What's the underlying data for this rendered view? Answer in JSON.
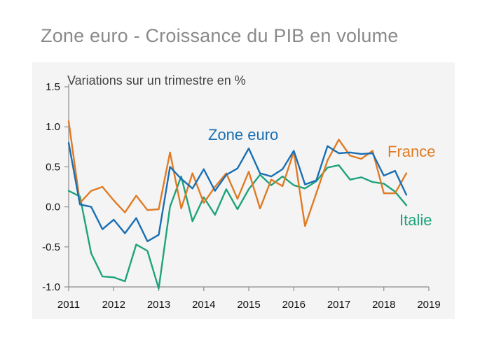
{
  "title": "Zone euro - Croissance du PIB en volume",
  "chart_data": {
    "type": "line",
    "title": "Zone euro - Croissance du PIB en volume",
    "ylabel": "Variations sur un trimestre en %",
    "xlabel": "",
    "ylim": [
      -1.0,
      1.5
    ],
    "xlim": [
      2011,
      2019
    ],
    "yticks": [
      1.5,
      1.0,
      0.5,
      0.0,
      -0.5,
      -1.0
    ],
    "ytick_labels": [
      "1.5",
      "1.0",
      "0.5",
      "0.0",
      "-0.5",
      "-1.0"
    ],
    "xticks": [
      2011,
      2012,
      2013,
      2014,
      2015,
      2016,
      2017,
      2018,
      2019
    ],
    "xtick_labels": [
      "2011",
      "2012",
      "2013",
      "2014",
      "2015",
      "2016",
      "2017",
      "2018",
      "2019"
    ],
    "x": [
      2011.0,
      2011.25,
      2011.5,
      2011.75,
      2012.0,
      2012.25,
      2012.5,
      2012.75,
      2013.0,
      2013.25,
      2013.5,
      2013.75,
      2014.0,
      2014.25,
      2014.5,
      2014.75,
      2015.0,
      2015.25,
      2015.5,
      2015.75,
      2016.0,
      2016.25,
      2016.5,
      2016.75,
      2017.0,
      2017.25,
      2017.5,
      2017.75,
      2018.0,
      2018.25,
      2018.5
    ],
    "series": [
      {
        "name": "Zone euro",
        "color": "#1a6fb3",
        "values": [
          0.8,
          0.03,
          0.0,
          -0.28,
          -0.16,
          -0.33,
          -0.14,
          -0.43,
          -0.35,
          0.5,
          0.35,
          0.23,
          0.47,
          0.2,
          0.4,
          0.48,
          0.73,
          0.42,
          0.38,
          0.47,
          0.7,
          0.28,
          0.33,
          0.76,
          0.67,
          0.68,
          0.66,
          0.67,
          0.39,
          0.45,
          0.15
        ]
      },
      {
        "name": "France",
        "color": "#e07b24",
        "values": [
          1.07,
          0.05,
          0.2,
          0.25,
          0.08,
          -0.07,
          0.14,
          -0.04,
          -0.03,
          0.68,
          -0.02,
          0.42,
          0.05,
          0.25,
          0.42,
          0.1,
          0.44,
          -0.02,
          0.34,
          0.26,
          0.69,
          -0.24,
          0.17,
          0.58,
          0.84,
          0.64,
          0.6,
          0.7,
          0.17,
          0.17,
          0.42
        ]
      },
      {
        "name": "Italie",
        "color": "#1fa37c",
        "values": [
          0.2,
          0.13,
          -0.58,
          -0.87,
          -0.88,
          -0.93,
          -0.47,
          -0.55,
          -1.02,
          0.0,
          0.38,
          -0.18,
          0.12,
          -0.1,
          0.22,
          -0.03,
          0.22,
          0.4,
          0.27,
          0.38,
          0.27,
          0.23,
          0.32,
          0.49,
          0.52,
          0.34,
          0.37,
          0.31,
          0.29,
          0.19,
          0.02
        ]
      }
    ],
    "grid": false,
    "legend": "inline labels next to series"
  }
}
